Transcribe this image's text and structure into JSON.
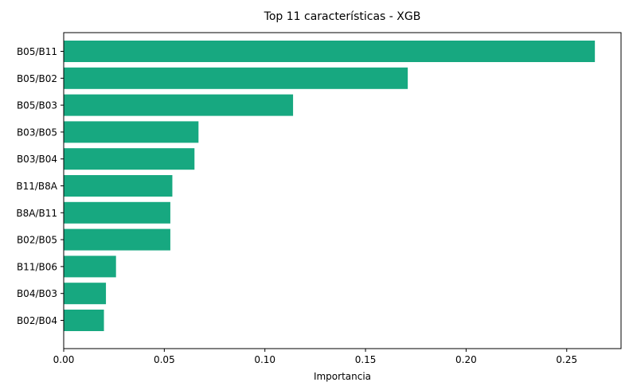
{
  "chart_data": {
    "type": "bar",
    "orientation": "horizontal",
    "title": "Top 11 características - XGB",
    "xlabel": "Importancia",
    "ylabel": "",
    "categories": [
      "B05/B11",
      "B05/B02",
      "B05/B03",
      "B03/B05",
      "B03/B04",
      "B11/B8A",
      "B8A/B11",
      "B02/B05",
      "B11/B06",
      "B04/B03",
      "B02/B04"
    ],
    "values": [
      0.264,
      0.171,
      0.114,
      0.067,
      0.065,
      0.054,
      0.053,
      0.053,
      0.026,
      0.021,
      0.02
    ],
    "xlim": [
      0,
      0.277
    ],
    "xticks": [
      0.0,
      0.05,
      0.1,
      0.15,
      0.2,
      0.25
    ],
    "xtick_labels": [
      "0.00",
      "0.05",
      "0.10",
      "0.15",
      "0.20",
      "0.25"
    ],
    "bar_color": "#17a880",
    "grid": false,
    "legend": "none"
  }
}
